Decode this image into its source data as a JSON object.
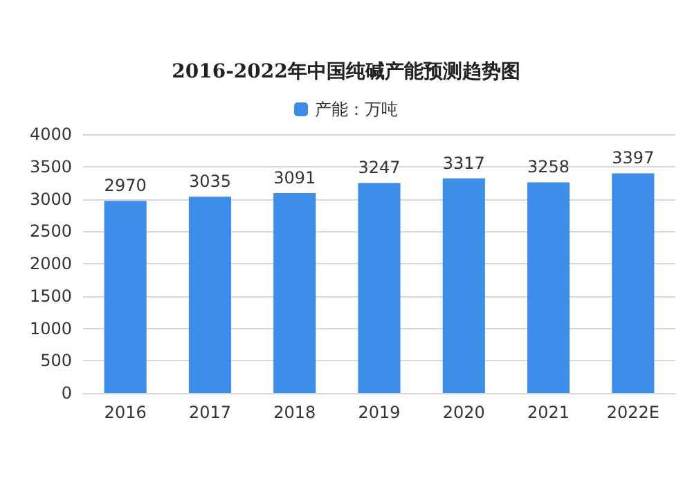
{
  "chart_data": {
    "type": "bar",
    "title": "2016-2022年中国纯碱产能预测趋势图",
    "categories": [
      "2016",
      "2017",
      "2018",
      "2019",
      "2020",
      "2021",
      "2022E"
    ],
    "series": [
      {
        "name": "产能：万吨",
        "color": "#3d8ee8",
        "values": [
          2970,
          3035,
          3091,
          3247,
          3317,
          3258,
          3397
        ]
      }
    ],
    "ylim": [
      0,
      4000
    ],
    "yticks": [
      0,
      500,
      1000,
      1500,
      2000,
      2500,
      3000,
      3500,
      4000
    ],
    "grid": "y",
    "legend": "top",
    "data_labels": true
  }
}
